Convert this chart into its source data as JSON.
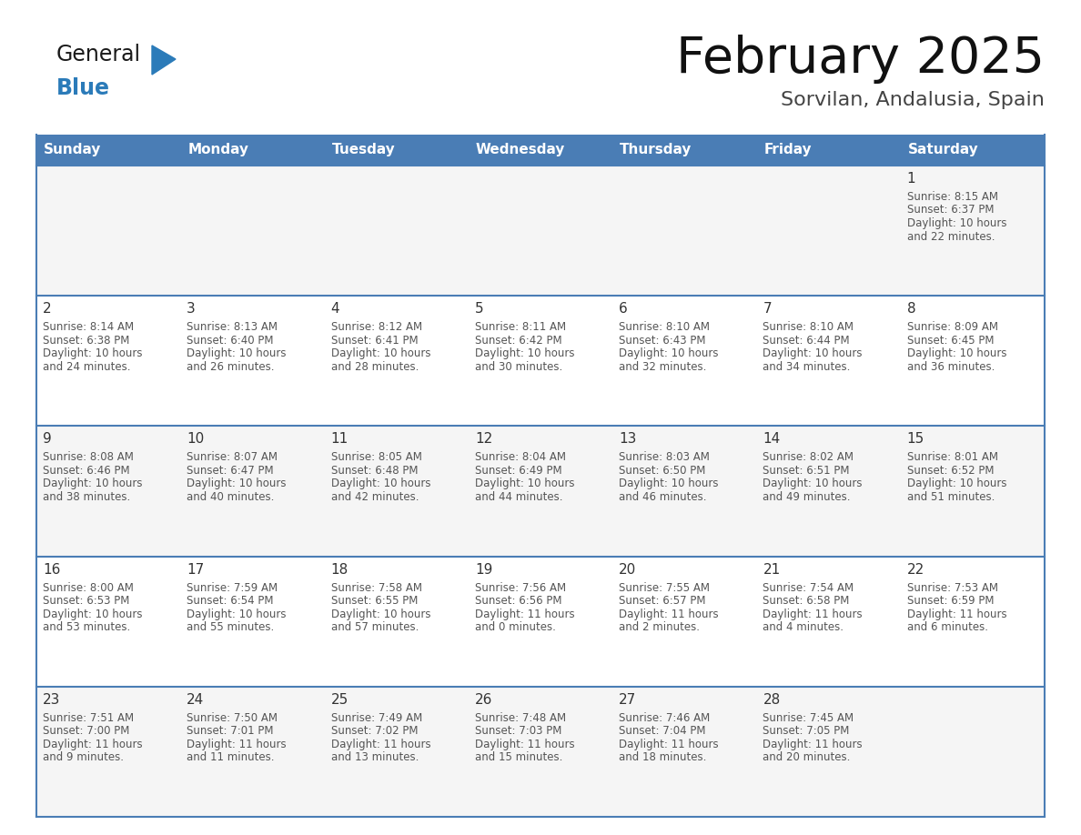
{
  "title": "February 2025",
  "subtitle": "Sorvilan, Andalusia, Spain",
  "header_bg_color": "#4a7db5",
  "header_text_color": "#ffffff",
  "day_names": [
    "Sunday",
    "Monday",
    "Tuesday",
    "Wednesday",
    "Thursday",
    "Friday",
    "Saturday"
  ],
  "row_bg_colors": [
    "#f5f5f5",
    "#ffffff",
    "#f5f5f5",
    "#ffffff",
    "#f5f5f5"
  ],
  "border_color": "#4a7db5",
  "day_num_color": "#333333",
  "info_color": "#555555",
  "calendar": [
    [
      null,
      null,
      null,
      null,
      null,
      null,
      {
        "day": "1",
        "sunrise": "8:15 AM",
        "sunset": "6:37 PM",
        "daylight": "10 hours",
        "daylight2": "and 22 minutes."
      }
    ],
    [
      {
        "day": "2",
        "sunrise": "8:14 AM",
        "sunset": "6:38 PM",
        "daylight": "10 hours",
        "daylight2": "and 24 minutes."
      },
      {
        "day": "3",
        "sunrise": "8:13 AM",
        "sunset": "6:40 PM",
        "daylight": "10 hours",
        "daylight2": "and 26 minutes."
      },
      {
        "day": "4",
        "sunrise": "8:12 AM",
        "sunset": "6:41 PM",
        "daylight": "10 hours",
        "daylight2": "and 28 minutes."
      },
      {
        "day": "5",
        "sunrise": "8:11 AM",
        "sunset": "6:42 PM",
        "daylight": "10 hours",
        "daylight2": "and 30 minutes."
      },
      {
        "day": "6",
        "sunrise": "8:10 AM",
        "sunset": "6:43 PM",
        "daylight": "10 hours",
        "daylight2": "and 32 minutes."
      },
      {
        "day": "7",
        "sunrise": "8:10 AM",
        "sunset": "6:44 PM",
        "daylight": "10 hours",
        "daylight2": "and 34 minutes."
      },
      {
        "day": "8",
        "sunrise": "8:09 AM",
        "sunset": "6:45 PM",
        "daylight": "10 hours",
        "daylight2": "and 36 minutes."
      }
    ],
    [
      {
        "day": "9",
        "sunrise": "8:08 AM",
        "sunset": "6:46 PM",
        "daylight": "10 hours",
        "daylight2": "and 38 minutes."
      },
      {
        "day": "10",
        "sunrise": "8:07 AM",
        "sunset": "6:47 PM",
        "daylight": "10 hours",
        "daylight2": "and 40 minutes."
      },
      {
        "day": "11",
        "sunrise": "8:05 AM",
        "sunset": "6:48 PM",
        "daylight": "10 hours",
        "daylight2": "and 42 minutes."
      },
      {
        "day": "12",
        "sunrise": "8:04 AM",
        "sunset": "6:49 PM",
        "daylight": "10 hours",
        "daylight2": "and 44 minutes."
      },
      {
        "day": "13",
        "sunrise": "8:03 AM",
        "sunset": "6:50 PM",
        "daylight": "10 hours",
        "daylight2": "and 46 minutes."
      },
      {
        "day": "14",
        "sunrise": "8:02 AM",
        "sunset": "6:51 PM",
        "daylight": "10 hours",
        "daylight2": "and 49 minutes."
      },
      {
        "day": "15",
        "sunrise": "8:01 AM",
        "sunset": "6:52 PM",
        "daylight": "10 hours",
        "daylight2": "and 51 minutes."
      }
    ],
    [
      {
        "day": "16",
        "sunrise": "8:00 AM",
        "sunset": "6:53 PM",
        "daylight": "10 hours",
        "daylight2": "and 53 minutes."
      },
      {
        "day": "17",
        "sunrise": "7:59 AM",
        "sunset": "6:54 PM",
        "daylight": "10 hours",
        "daylight2": "and 55 minutes."
      },
      {
        "day": "18",
        "sunrise": "7:58 AM",
        "sunset": "6:55 PM",
        "daylight": "10 hours",
        "daylight2": "and 57 minutes."
      },
      {
        "day": "19",
        "sunrise": "7:56 AM",
        "sunset": "6:56 PM",
        "daylight": "11 hours",
        "daylight2": "and 0 minutes."
      },
      {
        "day": "20",
        "sunrise": "7:55 AM",
        "sunset": "6:57 PM",
        "daylight": "11 hours",
        "daylight2": "and 2 minutes."
      },
      {
        "day": "21",
        "sunrise": "7:54 AM",
        "sunset": "6:58 PM",
        "daylight": "11 hours",
        "daylight2": "and 4 minutes."
      },
      {
        "day": "22",
        "sunrise": "7:53 AM",
        "sunset": "6:59 PM",
        "daylight": "11 hours",
        "daylight2": "and 6 minutes."
      }
    ],
    [
      {
        "day": "23",
        "sunrise": "7:51 AM",
        "sunset": "7:00 PM",
        "daylight": "11 hours",
        "daylight2": "and 9 minutes."
      },
      {
        "day": "24",
        "sunrise": "7:50 AM",
        "sunset": "7:01 PM",
        "daylight": "11 hours",
        "daylight2": "and 11 minutes."
      },
      {
        "day": "25",
        "sunrise": "7:49 AM",
        "sunset": "7:02 PM",
        "daylight": "11 hours",
        "daylight2": "and 13 minutes."
      },
      {
        "day": "26",
        "sunrise": "7:48 AM",
        "sunset": "7:03 PM",
        "daylight": "11 hours",
        "daylight2": "and 15 minutes."
      },
      {
        "day": "27",
        "sunrise": "7:46 AM",
        "sunset": "7:04 PM",
        "daylight": "11 hours",
        "daylight2": "and 18 minutes."
      },
      {
        "day": "28",
        "sunrise": "7:45 AM",
        "sunset": "7:05 PM",
        "daylight": "11 hours",
        "daylight2": "and 20 minutes."
      },
      null
    ]
  ],
  "logo_general_color": "#1a1a1a",
  "logo_blue_color": "#2b7bb9",
  "logo_triangle_color": "#2b7bb9"
}
